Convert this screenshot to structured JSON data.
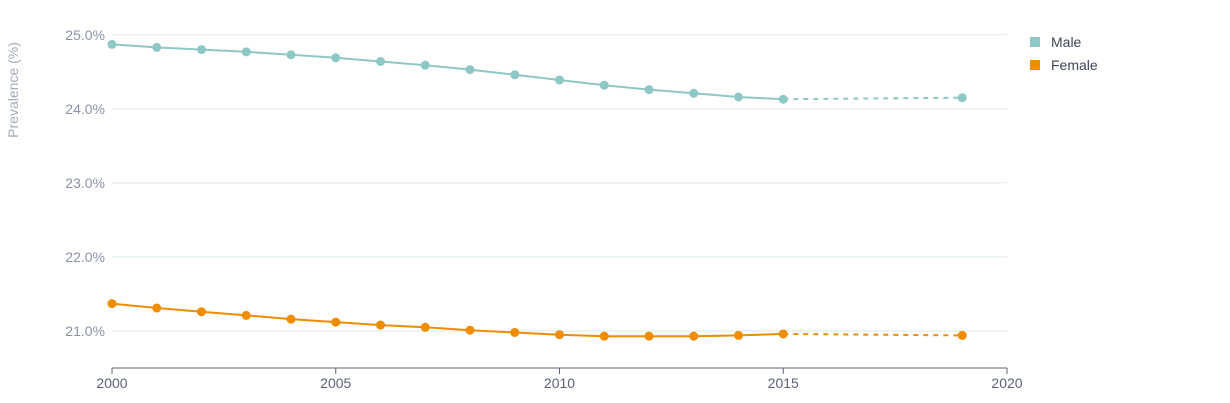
{
  "chart_data": {
    "type": "line",
    "title": "",
    "xlabel": "",
    "ylabel": "Prevalence (%)",
    "xlim": [
      2000,
      2020
    ],
    "ylim": [
      20.5,
      25.2
    ],
    "x_ticks": [
      2000,
      2005,
      2010,
      2015,
      2020
    ],
    "y_ticks": [
      21.0,
      22.0,
      23.0,
      24.0,
      25.0
    ],
    "y_tick_labels": [
      "21.0%",
      "22.0%",
      "23.0%",
      "24.0%",
      "25.0%"
    ],
    "projection_start_year": 2015,
    "legend_position": "top-right",
    "grid": true,
    "series": [
      {
        "name": "Male",
        "color": "#8ec8c6",
        "x": [
          2000,
          2001,
          2002,
          2003,
          2004,
          2005,
          2006,
          2007,
          2008,
          2009,
          2010,
          2011,
          2012,
          2013,
          2014,
          2015,
          2019
        ],
        "values": [
          24.87,
          24.83,
          24.8,
          24.77,
          24.73,
          24.69,
          24.64,
          24.59,
          24.53,
          24.46,
          24.39,
          24.32,
          24.26,
          24.21,
          24.16,
          24.13,
          24.15
        ]
      },
      {
        "name": "Female",
        "color": "#f08c00",
        "x": [
          2000,
          2001,
          2002,
          2003,
          2004,
          2005,
          2006,
          2007,
          2008,
          2009,
          2010,
          2011,
          2012,
          2013,
          2014,
          2015,
          2019
        ],
        "values": [
          21.37,
          21.31,
          21.26,
          21.21,
          21.16,
          21.12,
          21.08,
          21.05,
          21.01,
          20.98,
          20.95,
          20.93,
          20.93,
          20.93,
          20.94,
          20.96,
          20.94
        ]
      }
    ]
  }
}
